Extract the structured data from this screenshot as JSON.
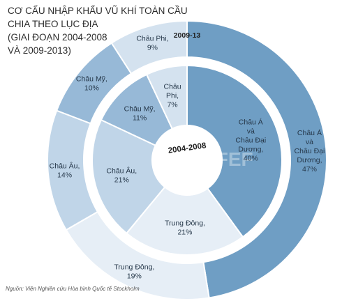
{
  "title_lines": [
    "CƠ CẤU NHẬP KHẨU VŨ KHÍ TOÀN CẦU",
    "CHIA THEO LỤC ĐỊA",
    "(GIAI ĐOẠN 2004-2008",
    "VÀ 2009-2013)"
  ],
  "source": "Nguồn: Viện Nghiên cứu Hòa bình Quốc tế Stockholm",
  "chart_data": {
    "type": "pie",
    "subtype": "nested-donut",
    "rings": [
      {
        "name": "2009-13",
        "position": "outer",
        "slices": [
          {
            "label_lines": [
              "Châu Á",
              "và",
              "Châu Đại",
              "Dương,",
              "47%"
            ],
            "value": 47,
            "color": "#6f9ec4"
          },
          {
            "label_lines": [
              "Trung Đông,",
              "19%"
            ],
            "value": 19,
            "color": "#e6eef6"
          },
          {
            "label_lines": [
              "Châu Âu,",
              "14%"
            ],
            "value": 14,
            "color": "#c0d5e8"
          },
          {
            "label_lines": [
              "Châu Mỹ,",
              "10%"
            ],
            "value": 10,
            "color": "#97b9d7"
          },
          {
            "label_lines": [
              "Châu Phi,",
              "9%"
            ],
            "value": 9,
            "color": "#d4e2ef"
          }
        ]
      },
      {
        "name": "2004-2008",
        "position": "inner",
        "slices": [
          {
            "label_lines": [
              "Châu Á",
              "và",
              "Châu Đại",
              "Dương,",
              "40%"
            ],
            "value": 40,
            "color": "#6f9ec4"
          },
          {
            "label_lines": [
              "Trung Đông,",
              "21%"
            ],
            "value": 21,
            "color": "#e6eef6"
          },
          {
            "label_lines": [
              "Châu Âu,",
              "21%"
            ],
            "value": 21,
            "color": "#c0d5e8"
          },
          {
            "label_lines": [
              "Châu Mỹ,",
              "11%"
            ],
            "value": 11,
            "color": "#97b9d7"
          },
          {
            "label_lines": [
              "Châu",
              "Phi,",
              "7%"
            ],
            "value": 7,
            "color": "#d4e2ef"
          }
        ]
      }
    ],
    "watermark": "CAFEF",
    "start_angle_deg": 0,
    "direction": "clockwise"
  }
}
